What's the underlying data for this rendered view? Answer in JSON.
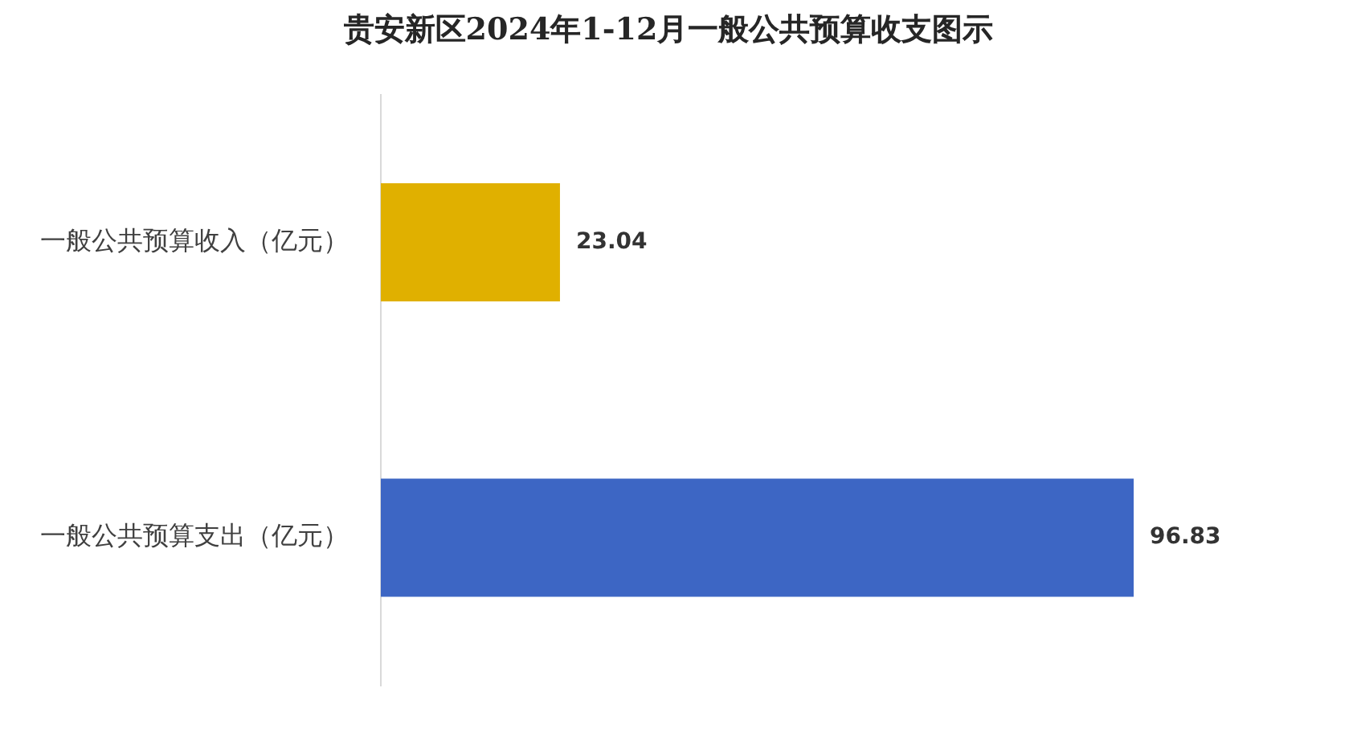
{
  "chart_data": {
    "type": "bar",
    "orientation": "horizontal",
    "title": "贵安新区2024年1-12月一般公共预算收支图示",
    "categories": [
      "一般公共预算收入（亿元）",
      "一般公共预算支出（亿元）"
    ],
    "values": [
      23.04,
      96.83
    ],
    "colors": [
      "#e0b000",
      "#3d66c4"
    ],
    "data_labels": true,
    "grid": false,
    "legend": false,
    "tick_labels": "y"
  }
}
